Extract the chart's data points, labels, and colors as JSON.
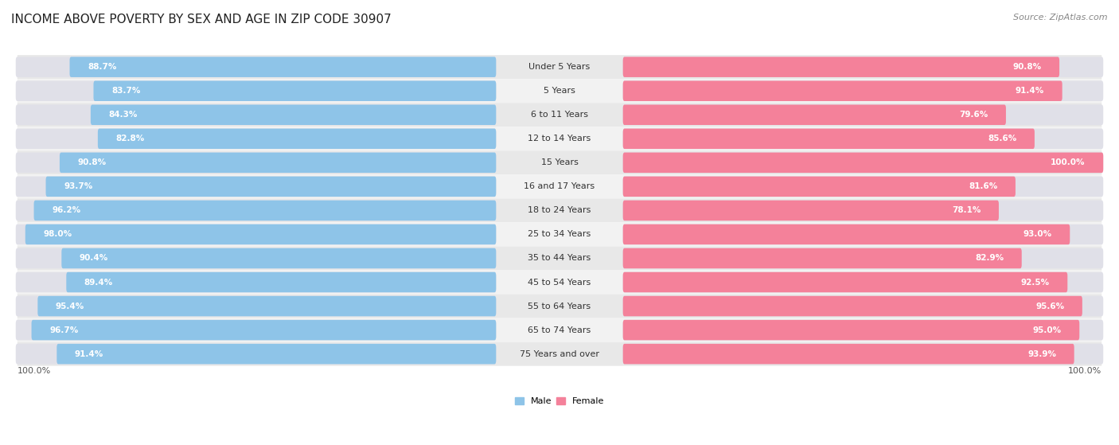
{
  "title": "INCOME ABOVE POVERTY BY SEX AND AGE IN ZIP CODE 30907",
  "source": "Source: ZipAtlas.com",
  "categories": [
    "Under 5 Years",
    "5 Years",
    "6 to 11 Years",
    "12 to 14 Years",
    "15 Years",
    "16 and 17 Years",
    "18 to 24 Years",
    "25 to 34 Years",
    "35 to 44 Years",
    "45 to 54 Years",
    "55 to 64 Years",
    "65 to 74 Years",
    "75 Years and over"
  ],
  "male_values": [
    88.7,
    83.7,
    84.3,
    82.8,
    90.8,
    93.7,
    96.2,
    98.0,
    90.4,
    89.4,
    95.4,
    96.7,
    91.4
  ],
  "female_values": [
    90.8,
    91.4,
    79.6,
    85.6,
    100.0,
    81.6,
    78.1,
    93.0,
    82.9,
    92.5,
    95.6,
    95.0,
    93.9
  ],
  "male_color": "#8ec4e8",
  "female_color": "#f4819a",
  "male_label": "Male",
  "female_label": "Female",
  "bg_light": "#f2f2f2",
  "bg_dark": "#e8e8e8",
  "track_color": "#e0e0e8",
  "title_fontsize": 11,
  "source_fontsize": 8,
  "label_fontsize": 8,
  "value_fontsize": 7.5,
  "max_val": 100.0,
  "bottom_label": "100.0%"
}
